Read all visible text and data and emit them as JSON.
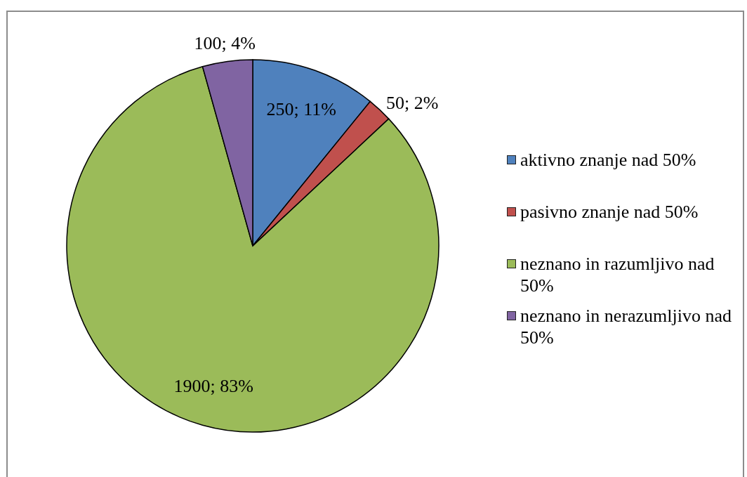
{
  "chart_data": {
    "type": "pie",
    "categories": [
      "aktivno znanje nad 50%",
      "pasivno znanje nad 50%",
      "neznano in razumljivo nad 50%",
      "neznano in nerazumljivo nad 50%"
    ],
    "values": [
      250,
      50,
      1900,
      100
    ],
    "colors": [
      "#4f81bd",
      "#c0504d",
      "#9bbb59",
      "#8064a2"
    ],
    "value_labels": [
      "250; 11%",
      "50; 2%",
      "1900; 83%",
      "100; 4%"
    ],
    "legend": "right"
  }
}
